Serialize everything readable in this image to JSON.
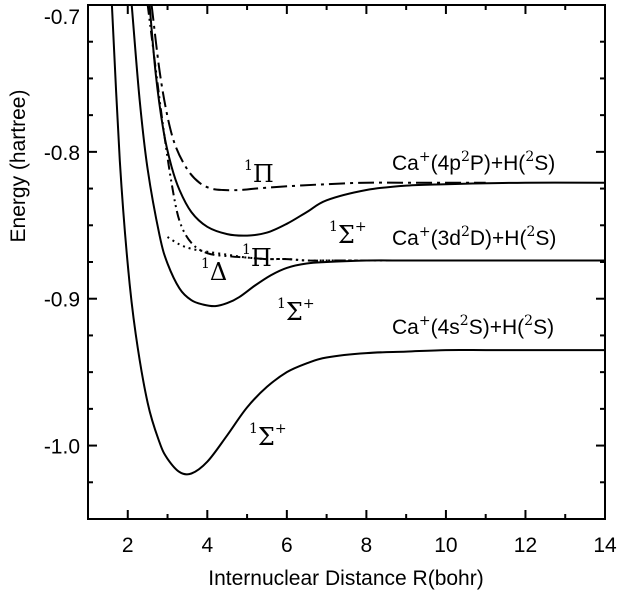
{
  "chart_data": {
    "type": "line",
    "title": "",
    "xlabel": "Internuclear Distance R(bohr)",
    "ylabel": "Energy  (hartree)",
    "xlim": [
      1,
      14
    ],
    "ylim": [
      -1.05,
      -0.7
    ],
    "xticks": [
      "2",
      "4",
      "6",
      "8",
      "10",
      "12",
      "14"
    ],
    "yticks": [
      "-0.7",
      "-0.8",
      "-0.9",
      "-1.0"
    ],
    "grid": false,
    "series": [
      {
        "name": "",
        "style": "solid",
        "label": "1Σ+",
        "x": [
          1.6,
          1.8,
          2.0,
          2.2,
          2.5,
          2.8,
          3.0,
          3.3,
          3.6,
          4.0,
          4.5,
          5.0,
          5.5,
          6.0,
          6.5,
          7.0,
          8.0,
          9.0,
          10.0,
          11.0,
          12.0,
          13.0,
          14.0
        ],
        "y": [
          -0.7,
          -0.806,
          -0.877,
          -0.924,
          -0.971,
          -0.998,
          -1.009,
          -1.018,
          -1.019,
          -1.011,
          -0.993,
          -0.974,
          -0.96,
          -0.95,
          -0.944,
          -0.94,
          -0.937,
          -0.936,
          -0.935,
          -0.935,
          -0.935,
          -0.935,
          -0.935
        ]
      },
      {
        "name": "",
        "style": "solid",
        "label": "1Σ+",
        "x": [
          2.1,
          2.3,
          2.5,
          2.8,
          3.0,
          3.3,
          3.6,
          3.9,
          4.2,
          4.5,
          4.8,
          5.2,
          5.6,
          6.0,
          6.5,
          7.0,
          8.0,
          9.0,
          10.0,
          12.0,
          14.0
        ],
        "y": [
          -0.7,
          -0.765,
          -0.812,
          -0.857,
          -0.876,
          -0.893,
          -0.901,
          -0.904,
          -0.905,
          -0.903,
          -0.899,
          -0.891,
          -0.884,
          -0.879,
          -0.876,
          -0.875,
          -0.874,
          -0.874,
          -0.874,
          -0.874,
          -0.874
        ]
      },
      {
        "name": "",
        "style": "solid",
        "label": "1Σ+",
        "x": [
          2.55,
          2.7,
          2.9,
          3.1,
          3.3,
          3.6,
          4.0,
          4.5,
          5.0,
          5.5,
          6.0,
          6.5,
          7.0,
          8.0,
          9.0,
          10.0,
          12.0,
          14.0
        ],
        "y": [
          -0.7,
          -0.746,
          -0.786,
          -0.81,
          -0.826,
          -0.841,
          -0.851,
          -0.856,
          -0.857,
          -0.855,
          -0.849,
          -0.841,
          -0.833,
          -0.826,
          -0.823,
          -0.822,
          -0.821,
          -0.821
        ]
      },
      {
        "name": "",
        "style": "dashdot",
        "label": "1Π",
        "x": [
          2.6,
          2.8,
          3.0,
          3.2,
          3.5,
          3.8,
          4.1,
          4.4,
          4.8,
          5.2,
          5.7,
          6.3,
          7.0,
          8.0,
          9.0,
          10.0,
          11.0
        ],
        "y": [
          -0.7,
          -0.745,
          -0.776,
          -0.796,
          -0.812,
          -0.821,
          -0.825,
          -0.826,
          -0.826,
          -0.825,
          -0.824,
          -0.823,
          -0.822,
          -0.821,
          -0.821,
          -0.821,
          -0.821
        ]
      },
      {
        "name": "",
        "style": "dashdotdot",
        "label": "1Δ",
        "x": [
          2.5,
          2.7,
          2.9,
          3.1,
          3.3,
          3.6,
          4.0,
          4.5,
          5.0,
          5.5,
          6.0,
          6.5,
          7.0,
          8.0,
          9.0
        ],
        "y": [
          -0.7,
          -0.743,
          -0.785,
          -0.821,
          -0.847,
          -0.862,
          -0.869,
          -0.871,
          -0.872,
          -0.873,
          -0.873,
          -0.874,
          -0.874,
          -0.874,
          -0.874
        ]
      },
      {
        "name": "",
        "style": "dotted",
        "label": "1Π",
        "x": [
          3.0,
          3.3,
          3.6,
          4.0,
          4.5,
          5.0,
          5.5,
          6.0,
          6.5,
          7.0,
          8.0,
          9.0
        ],
        "y": [
          -0.858,
          -0.863,
          -0.866,
          -0.868,
          -0.87,
          -0.872,
          -0.873,
          -0.873,
          -0.874,
          -0.874,
          -0.874,
          -0.874
        ]
      }
    ],
    "annotations": [
      {
        "text": "Ca+(4p2P)+H(2S)",
        "x": 9.5,
        "y": -0.821
      },
      {
        "text": "Ca+(3d2D)+H(2S)",
        "x": 9.5,
        "y": -0.874
      },
      {
        "text": "Ca+(4s2S)+H(2S)",
        "x": 9.5,
        "y": -0.935
      },
      {
        "text": "1Π",
        "x": 4.5,
        "y": -0.826
      },
      {
        "text": "1Σ+",
        "x": 7.0,
        "y": -0.857
      },
      {
        "text": "1Π",
        "x": 5.3,
        "y": -0.874
      },
      {
        "text": "1Δ",
        "x": 4.0,
        "y": -0.874
      },
      {
        "text": "1Σ+",
        "x": 5.8,
        "y": -0.905
      },
      {
        "text": "1Σ+",
        "x": 5.5,
        "y": -1.0
      }
    ]
  },
  "labels": {
    "state_pi_upper": {
      "main": "Π",
      "sup": "1"
    },
    "state_sigma_upper": {
      "main": "Σ",
      "pre": "1",
      "post": "+"
    },
    "state_pi_lower": {
      "main": "Π",
      "sup": "1"
    },
    "state_delta": {
      "main": "Δ",
      "sup": "1"
    },
    "state_sigma_mid": {
      "main": "Σ",
      "pre": "1",
      "post": "+"
    },
    "state_sigma_ground": {
      "main": "Σ",
      "pre": "1",
      "post": "+"
    },
    "asym_4p": {
      "a": "Ca",
      "b": "+",
      "c": "(4p",
      "d": "2",
      "e": "P)+H(",
      "f": "2",
      "g": "S)"
    },
    "asym_3d": {
      "a": "Ca",
      "b": "+",
      "c": "(3d",
      "d": "2",
      "e": "D)+H(",
      "f": "2",
      "g": "S)"
    },
    "asym_4s": {
      "a": "Ca",
      "b": "+",
      "c": "(4s",
      "d": "2",
      "e": "S)+H(",
      "f": "2",
      "g": "S)"
    }
  }
}
